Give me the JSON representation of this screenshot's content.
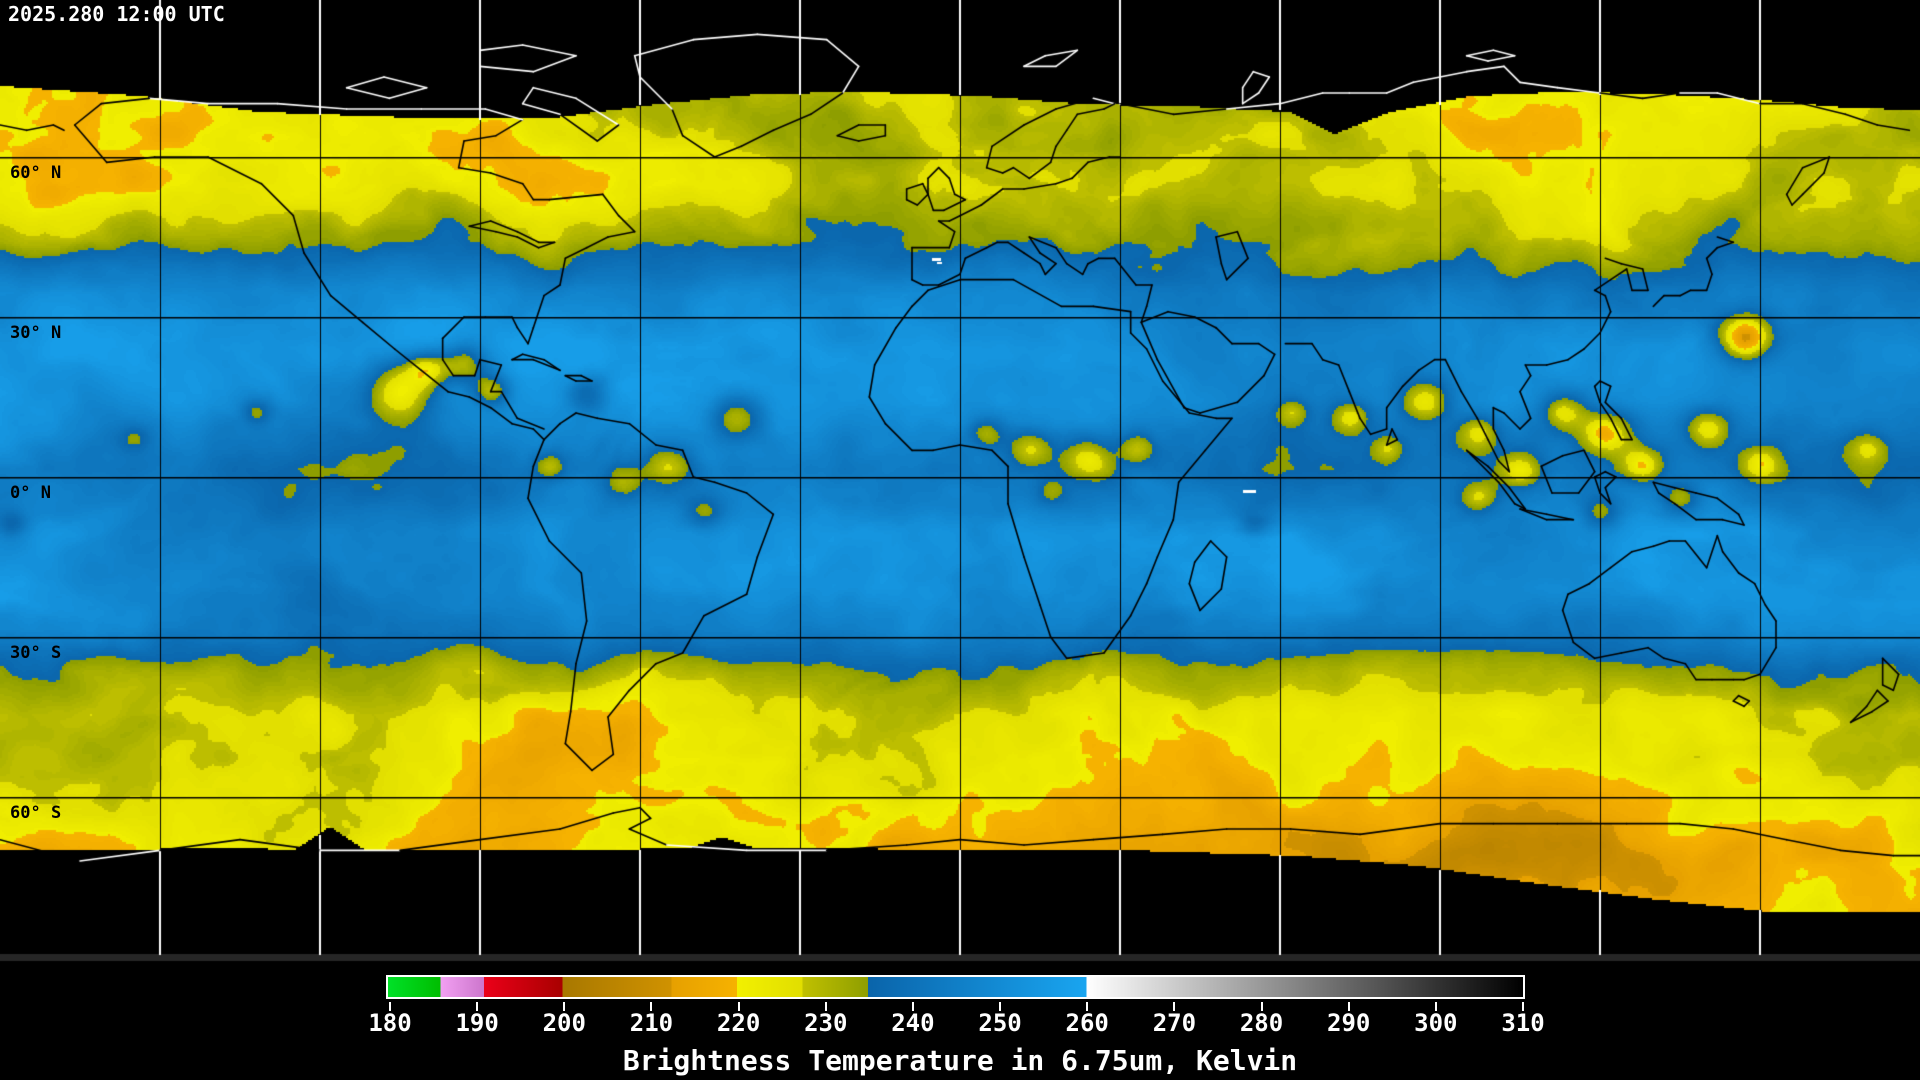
{
  "header": {
    "timestamp": "2025.280 12:00 UTC"
  },
  "map": {
    "projection": "equirectangular",
    "gridline_interval_degrees": 30,
    "latitude_labels": [
      {
        "text": "60° N",
        "lat": 60
      },
      {
        "text": "30° N",
        "lat": 30
      },
      {
        "text": "0° N",
        "lat": 0
      },
      {
        "text": "30° S",
        "lat": -30
      },
      {
        "text": "60° S",
        "lat": -60
      }
    ],
    "colors": {
      "background": "#000000",
      "grid_over_data": "#000000",
      "grid_over_background": "#ffffff",
      "coastline_over_data": "#000000",
      "coastline_over_background": "#ffffff",
      "timestamp_text": "#ffffff",
      "latitude_label_text": "#000000"
    }
  },
  "colorbar": {
    "caption": "Brightness Temperature in 6.75um, Kelvin",
    "unit": "Kelvin",
    "min": 180,
    "max": 310,
    "ticks": [
      180,
      190,
      200,
      210,
      220,
      230,
      240,
      250,
      260,
      270,
      280,
      290,
      300,
      310
    ],
    "segments": [
      {
        "from": 180,
        "to": 186,
        "start": "#00e128",
        "end": "#00bd00"
      },
      {
        "from": 186,
        "to": 191,
        "start": "#f2a0f2",
        "end": "#cc76cc"
      },
      {
        "from": 191,
        "to": 200,
        "start": "#eb0019",
        "end": "#a80000"
      },
      {
        "from": 200,
        "to": 212.5,
        "start": "#a87800",
        "end": "#d09200"
      },
      {
        "from": 212.5,
        "to": 220,
        "start": "#e6a000",
        "end": "#f6b200"
      },
      {
        "from": 220,
        "to": 227.5,
        "start": "#f2f000",
        "end": "#e1de00"
      },
      {
        "from": 227.5,
        "to": 235,
        "start": "#c0c000",
        "end": "#8e9e00"
      },
      {
        "from": 235,
        "to": 260,
        "start": "#0a64aa",
        "end": "#19a5f0"
      },
      {
        "from": 260,
        "to": 310,
        "start": "#ffffff",
        "end": "#000000"
      }
    ]
  }
}
